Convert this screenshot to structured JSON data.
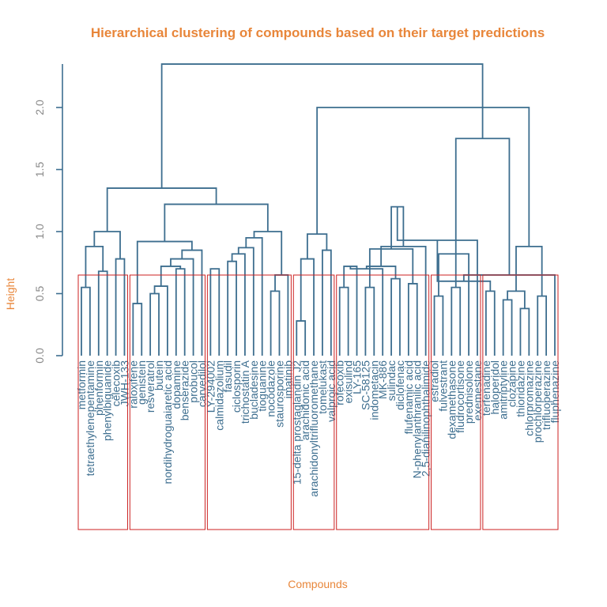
{
  "colors": {
    "title": "#E8863A",
    "branches": "#3D6E8F",
    "cluster_boxes": "#CC2222",
    "ticks": "#888888"
  },
  "chart_data": {
    "type": "dendrogram",
    "title": "Hierarchical clustering of compounds based on their target predictions",
    "xlabel": "Compounds",
    "ylabel": "Height",
    "ylim": [
      0,
      2.35
    ],
    "yticks": [
      "0.0",
      "0.5",
      "1.0",
      "1.5",
      "2.0"
    ],
    "leaves": [
      "metformin",
      "tetraethylenepentamine",
      "phenformin",
      "phenylbiguanide",
      "celecoxib",
      "JWH-133",
      "raloxifene",
      "genistein",
      "resveratrol",
      "butein",
      "nordihydroguaiaretic acid",
      "dopamine",
      "benserazide",
      "probucol",
      "carvedilol",
      "LY-294002",
      "calmidazolium",
      "fasudil",
      "ciclosporin",
      "trichostatin A",
      "bucladesine",
      "tioguanine",
      "nocodazole",
      "staurosporine",
      "imatinib",
      "15-delta prostaglandin J2",
      "arachidonic acid",
      "arachidonyltrifluoromethane",
      "tomelukast",
      "valproic acid",
      "rofecoxib",
      "exisulind",
      "LY-165",
      "SC-58125",
      "indometacin",
      "MK-886",
      "sulindac",
      "diclofenac",
      "flufenamic acid",
      "N-phenylanthranilic acid",
      "2,5-dianilinophthalimide",
      "estradiol",
      "fulvestrant",
      "dexamethasone",
      "fludrocortisone",
      "prednisolone",
      "exemestane",
      "terfenadine",
      "haloperidol",
      "amitriptyline",
      "clozapine",
      "thioridazine",
      "chlorpromazine",
      "prochlorperazine",
      "trifluoperazine",
      "fluphenazine"
    ],
    "merges": [
      [
        0,
        1,
        0.55
      ],
      [
        2,
        3,
        0.68
      ],
      [
        4,
        5,
        0.78
      ],
      [
        -1,
        -2,
        0.88
      ],
      [
        -4,
        -3,
        1.0
      ],
      [
        6,
        7,
        0.42
      ],
      [
        8,
        9,
        0.5
      ],
      [
        -7,
        10,
        0.56
      ],
      [
        11,
        12,
        0.7
      ],
      [
        -8,
        -9,
        0.72
      ],
      [
        -10,
        13,
        0.78
      ],
      [
        14,
        -11,
        0.85
      ],
      [
        -6,
        -12,
        0.92
      ],
      [
        15,
        16,
        0.7
      ],
      [
        17,
        18,
        0.76
      ],
      [
        -15,
        19,
        0.82
      ],
      [
        -16,
        20,
        0.87
      ],
      [
        -17,
        21,
        0.95
      ],
      [
        22,
        23,
        0.52
      ],
      [
        -19,
        24,
        0.65
      ],
      [
        -18,
        -20,
        1.0
      ],
      [
        -13,
        -21,
        1.22
      ],
      [
        -5,
        -22,
        1.35
      ],
      [
        25,
        26,
        0.28
      ],
      [
        -24,
        27,
        0.78
      ],
      [
        28,
        29,
        0.85
      ],
      [
        -25,
        -26,
        0.98
      ],
      [
        30,
        31,
        0.55
      ],
      [
        -28,
        32,
        0.72
      ],
      [
        33,
        34,
        0.55
      ],
      [
        -29,
        35,
        0.7
      ],
      [
        36,
        37,
        0.62
      ],
      [
        38,
        39,
        0.58
      ],
      [
        -31,
        -32,
        0.72
      ],
      [
        -30,
        -33,
        0.86
      ],
      [
        40,
        -34,
        0.88
      ],
      [
        -35,
        -36,
        1.2
      ],
      [
        41,
        42,
        0.48
      ],
      [
        43,
        44,
        0.55
      ],
      [
        -38,
        45,
        0.82
      ],
      [
        -37,
        46,
        0.93
      ],
      [
        47,
        48,
        0.52
      ],
      [
        49,
        50,
        0.45
      ],
      [
        51,
        52,
        0.38
      ],
      [
        -41,
        -42,
        0.6
      ],
      [
        53,
        54,
        0.48
      ],
      [
        -43,
        -44,
        0.52
      ],
      [
        55,
        -45,
        0.65
      ],
      [
        -46,
        -47,
        0.88
      ],
      [
        -39,
        -48,
        1.75
      ],
      [
        -27,
        -49,
        2.0
      ],
      [
        -23,
        -50,
        2.35
      ]
    ],
    "clusters": [
      [
        0,
        5
      ],
      [
        6,
        14
      ],
      [
        15,
        24
      ],
      [
        25,
        29
      ],
      [
        30,
        40
      ],
      [
        41,
        46
      ],
      [
        47,
        55
      ]
    ]
  }
}
